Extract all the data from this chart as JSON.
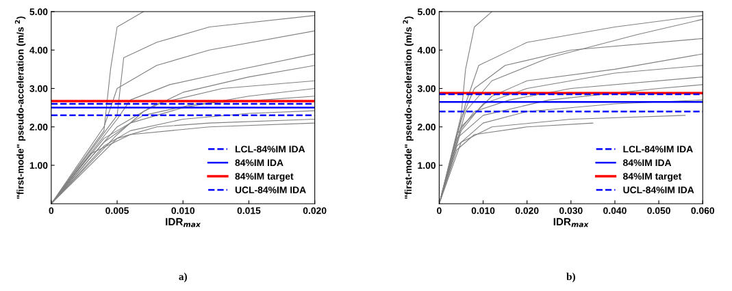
{
  "chart_data": [
    {
      "type": "line",
      "xlabel": "IDR$_{max}$",
      "ylabel": "\"first-mode\" pseudo-acceleration (m/s $^{2}$)",
      "annotations": [
        "a)"
      ],
      "xlim": [
        0,
        0.02
      ],
      "ylim": [
        0,
        5
      ],
      "xticks": [
        0,
        {
          "value": 0.005,
          "label": "0.005"
        },
        {
          "value": 0.01,
          "label": "0.010"
        },
        {
          "value": 0.015,
          "label": "0.015"
        },
        {
          "value": 0.02,
          "label": "0.020"
        }
      ],
      "yticks": [
        {
          "value": 1,
          "label": "1.00"
        },
        {
          "value": 2,
          "label": "2.00"
        },
        {
          "value": 3,
          "label": "3.00"
        },
        {
          "value": 4,
          "label": "4.00"
        },
        {
          "value": 5,
          "label": "5.00"
        }
      ],
      "grid": false,
      "legend": "bottom right",
      "marker": "none",
      "line_style": "solid",
      "series": [
        {
          "color": "#808080",
          "x": [
            0,
            0.004,
            0.006,
            0.01,
            0.015,
            0.02
          ],
          "values": [
            0,
            1.5,
            1.9,
            2.2,
            2.35,
            2.42
          ]
        },
        {
          "color": "#808080",
          "x": [
            0,
            0.004,
            0.006,
            0.01,
            0.015,
            0.02
          ],
          "values": [
            0,
            1.6,
            2.1,
            2.5,
            2.8,
            3.0
          ]
        },
        {
          "color": "#808080",
          "x": [
            0,
            0.005,
            0.007,
            0.01,
            0.015,
            0.02
          ],
          "values": [
            0,
            1.8,
            2.4,
            2.9,
            3.3,
            3.6
          ]
        },
        {
          "color": "#808080",
          "x": [
            0,
            0.005,
            0.008,
            0.012,
            0.02
          ],
          "values": [
            0,
            1.7,
            2.0,
            2.1,
            2.2
          ]
        },
        {
          "color": "#808080",
          "x": [
            0,
            0.004,
            0.005,
            0.008,
            0.012,
            0.02
          ],
          "values": [
            0,
            2.0,
            3.0,
            3.6,
            4.0,
            4.5
          ]
        },
        {
          "color": "#808080",
          "x": [
            0,
            0.004,
            0.0045,
            0.005,
            0.007
          ],
          "values": [
            0,
            1.9,
            3.5,
            4.6,
            5.0
          ]
        },
        {
          "color": "#808080",
          "x": [
            0,
            0.005,
            0.006,
            0.009,
            0.013,
            0.02
          ],
          "values": [
            0,
            2.2,
            2.7,
            3.1,
            3.4,
            3.9
          ]
        },
        {
          "color": "#808080",
          "x": [
            0,
            0.003,
            0.006,
            0.012,
            0.02
          ],
          "values": [
            0,
            1.3,
            1.8,
            2.0,
            2.1
          ]
        },
        {
          "color": "#808080",
          "x": [
            0,
            0.005,
            0.0055,
            0.008,
            0.012,
            0.02
          ],
          "values": [
            0,
            2.3,
            3.8,
            4.2,
            4.6,
            4.9
          ]
        },
        {
          "color": "#808080",
          "x": [
            0,
            0.004,
            0.007,
            0.011,
            0.016,
            0.02
          ],
          "values": [
            0,
            1.7,
            2.3,
            2.6,
            2.7,
            2.8
          ]
        },
        {
          "color": "#808080",
          "x": [
            0,
            0.005,
            0.008,
            0.013,
            0.02
          ],
          "values": [
            0,
            2.0,
            2.6,
            3.0,
            3.2
          ]
        }
      ],
      "ref_lines": [
        {
          "axis": "y",
          "value": 2.3,
          "label": "LCL-84%IM IDA",
          "color": "#0000ff",
          "line_style": "dashed"
        },
        {
          "axis": "y",
          "value": 2.5,
          "label": "84%IM IDA",
          "color": "#0000ff",
          "line_style": "solid"
        },
        {
          "axis": "y",
          "value": 2.67,
          "label": "84%IM target",
          "color": "#ff0000",
          "line_style": "solid"
        },
        {
          "axis": "y",
          "value": 2.6,
          "label": "UCL-84%IM IDA",
          "color": "#0000ff",
          "line_style": "dashed"
        }
      ]
    },
    {
      "type": "line",
      "xlabel": "IDR$_{max}$",
      "ylabel": "\"first-mode\" pseudo-acceleration (m/s $^{2}$)",
      "annotations": [
        "b)"
      ],
      "xlim": [
        0,
        0.06
      ],
      "ylim": [
        0,
        5
      ],
      "xticks": [
        0,
        {
          "value": 0.01,
          "label": "0.010"
        },
        {
          "value": 0.02,
          "label": "0.020"
        },
        {
          "value": 0.03,
          "label": "0.030"
        },
        {
          "value": 0.04,
          "label": "0.040"
        },
        {
          "value": 0.05,
          "label": "0.050"
        },
        {
          "value": 0.06,
          "label": "0.060"
        }
      ],
      "yticks": [
        {
          "value": 1,
          "label": "1.00"
        },
        {
          "value": 2,
          "label": "2.00"
        },
        {
          "value": 3,
          "label": "3.00"
        },
        {
          "value": 4,
          "label": "4.00"
        },
        {
          "value": 5,
          "label": "5.00"
        }
      ],
      "grid": false,
      "legend": "bottom right",
      "marker": "none",
      "line_style": "solid",
      "series": [
        {
          "color": "#808080",
          "x": [
            0,
            0.004,
            0.01,
            0.02,
            0.04,
            0.06
          ],
          "values": [
            0,
            1.5,
            2.1,
            2.4,
            2.6,
            2.7
          ]
        },
        {
          "color": "#808080",
          "x": [
            0,
            0.005,
            0.01,
            0.02,
            0.04,
            0.06
          ],
          "values": [
            0,
            1.9,
            2.6,
            3.0,
            3.4,
            3.6
          ]
        },
        {
          "color": "#808080",
          "x": [
            0,
            0.005,
            0.008,
            0.015,
            0.03,
            0.06
          ],
          "values": [
            0,
            2.2,
            3.0,
            3.6,
            4.0,
            4.3
          ]
        },
        {
          "color": "#808080",
          "x": [
            0,
            0.004,
            0.008,
            0.02,
            0.035
          ],
          "values": [
            0,
            1.4,
            1.8,
            2.0,
            2.1
          ]
        },
        {
          "color": "#808080",
          "x": [
            0,
            0.005,
            0.006,
            0.008,
            0.012
          ],
          "values": [
            0,
            2.3,
            3.5,
            4.6,
            5.0
          ]
        },
        {
          "color": "#808080",
          "x": [
            0,
            0.006,
            0.012,
            0.025,
            0.045,
            0.06
          ],
          "values": [
            0,
            2.4,
            3.2,
            3.8,
            4.4,
            4.8
          ]
        },
        {
          "color": "#808080",
          "x": [
            0,
            0.004,
            0.01,
            0.025,
            0.05,
            0.06
          ],
          "values": [
            0,
            1.7,
            2.3,
            2.7,
            3.0,
            3.1
          ]
        },
        {
          "color": "#808080",
          "x": [
            0,
            0.005,
            0.012,
            0.03,
            0.056
          ],
          "values": [
            0,
            1.6,
            2.0,
            2.2,
            2.3
          ]
        },
        {
          "color": "#808080",
          "x": [
            0,
            0.006,
            0.009,
            0.02,
            0.04,
            0.06
          ],
          "values": [
            0,
            2.6,
            3.6,
            4.2,
            4.6,
            4.9
          ]
        },
        {
          "color": "#808080",
          "x": [
            0,
            0.005,
            0.012,
            0.02,
            0.04,
            0.06
          ],
          "values": [
            0,
            2.0,
            2.8,
            3.2,
            3.5,
            3.9
          ]
        },
        {
          "color": "#808080",
          "x": [
            0,
            0.004,
            0.008,
            0.016,
            0.03,
            0.06
          ],
          "values": [
            0,
            1.8,
            2.4,
            2.7,
            3.0,
            3.3
          ]
        }
      ],
      "ref_lines": [
        {
          "axis": "y",
          "value": 2.4,
          "label": "LCL-84%IM IDA",
          "color": "#0000ff",
          "line_style": "dashed"
        },
        {
          "axis": "y",
          "value": 2.65,
          "label": "84%IM IDA",
          "color": "#0000ff",
          "line_style": "solid"
        },
        {
          "axis": "y",
          "value": 2.88,
          "label": "84%IM target",
          "color": "#ff0000",
          "line_style": "solid"
        },
        {
          "axis": "y",
          "value": 2.85,
          "label": "UCL-84%IM IDA",
          "color": "#0000ff",
          "line_style": "dashed"
        }
      ]
    }
  ]
}
